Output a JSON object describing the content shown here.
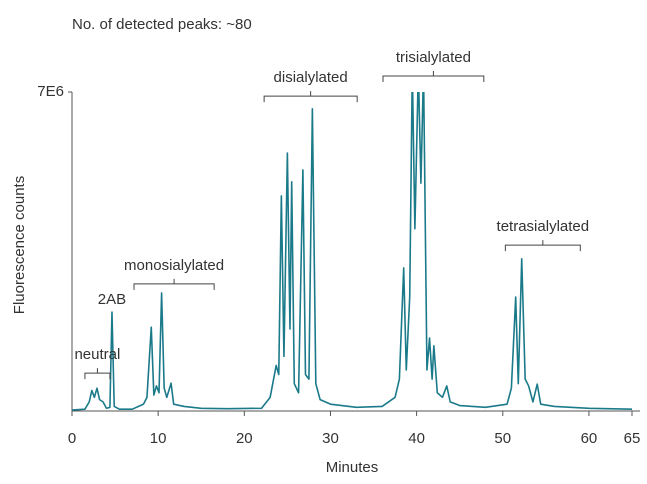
{
  "chart_data": {
    "type": "line",
    "title": "No. of  detected peaks: ~80",
    "x_label": "Minutes",
    "y_label": "Fluorescence counts",
    "xlim": [
      0,
      65
    ],
    "xticks": [
      0,
      10,
      20,
      30,
      40,
      50,
      60,
      65
    ],
    "ylim": [
      0,
      7000000
    ],
    "yticks": [
      {
        "value": 7000000,
        "label": "7E6"
      }
    ],
    "series": [
      {
        "color": "#1b7a8a",
        "x": [
          0,
          1.5,
          2.0,
          2.3,
          2.6,
          2.9,
          3.2,
          3.6,
          4.0,
          4.4,
          4.64,
          4.9,
          5.5,
          7.0,
          8.3,
          8.7,
          9.2,
          9.5,
          9.8,
          10.1,
          10.4,
          10.7,
          11.0,
          11.5,
          11.8,
          13.0,
          15.0,
          18.0,
          22.0,
          23.0,
          23.7,
          24.0,
          24.3,
          24.6,
          25.0,
          25.3,
          25.5,
          25.8,
          26.3,
          26.8,
          27.1,
          27.5,
          27.9,
          28.3,
          28.8,
          30.0,
          33.0,
          36.0,
          37.5,
          38.0,
          38.5,
          38.8,
          39.2,
          39.5,
          39.8,
          40.2,
          40.5,
          40.8,
          41.2,
          41.5,
          41.8,
          42.0,
          42.4,
          43.0,
          43.5,
          43.9,
          45.0,
          48.0,
          50.5,
          51.0,
          51.5,
          51.8,
          52.2,
          52.6,
          53.0,
          53.5,
          54.0,
          54.4,
          56.0,
          60.0,
          65.0
        ],
        "values": [
          20000,
          40000,
          200000,
          450000,
          300000,
          500000,
          250000,
          200000,
          60000,
          80000,
          2170000,
          100000,
          40000,
          40000,
          150000,
          300000,
          1840000,
          350000,
          550000,
          400000,
          2590000,
          500000,
          300000,
          610000,
          150000,
          100000,
          60000,
          50000,
          60000,
          300000,
          1000000,
          800000,
          4720000,
          1200000,
          5660000,
          1800000,
          5030000,
          600000,
          400000,
          5290000,
          800000,
          700000,
          6630000,
          600000,
          250000,
          150000,
          80000,
          100000,
          300000,
          700000,
          3140000,
          900000,
          2500000,
          7500000,
          4000000,
          7500000,
          5000000,
          7500000,
          900000,
          1600000,
          700000,
          1430000,
          400000,
          300000,
          550000,
          200000,
          120000,
          80000,
          150000,
          500000,
          2500000,
          600000,
          3340000,
          700000,
          550000,
          200000,
          590000,
          150000,
          100000,
          60000,
          40000
        ]
      }
    ],
    "annotations": [
      {
        "label": "neutral",
        "x": [
          1.5,
          4.4
        ],
        "y": 830000
      },
      {
        "label": "2AB",
        "x": 4.64,
        "y": 2440000
      },
      {
        "label": "monosialylated",
        "x": [
          7.2,
          16.5
        ],
        "y": 2790000
      },
      {
        "label": "disialylated",
        "x": [
          22.3,
          33.1
        ],
        "y": 6910000
      },
      {
        "label": "trisialylated",
        "x": [
          36.1,
          47.8
        ],
        "y": 7350000
      },
      {
        "label": "tetrasialylated",
        "x": [
          50.3,
          59.0
        ],
        "y": 3640000
      }
    ]
  }
}
